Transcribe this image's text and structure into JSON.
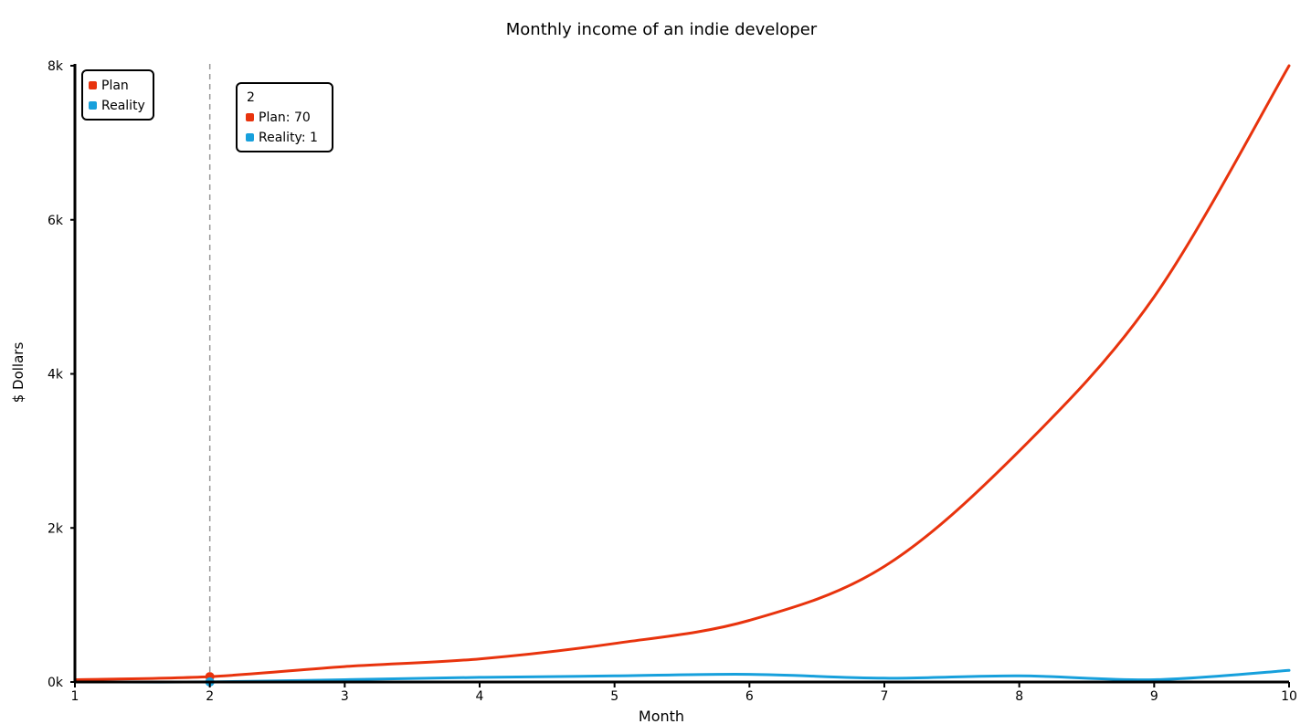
{
  "chart_data": {
    "type": "line",
    "title": "Monthly income of an indie developer",
    "xlabel": "Month",
    "ylabel": "$ Dollars",
    "xlim": [
      1,
      10
    ],
    "ylim": [
      0,
      8000
    ],
    "x_ticks": [
      1,
      2,
      3,
      4,
      5,
      6,
      7,
      8,
      9,
      10
    ],
    "y_ticks": [
      {
        "value": 0,
        "label": "0k"
      },
      {
        "value": 2000,
        "label": "2k"
      },
      {
        "value": 4000,
        "label": "4k"
      },
      {
        "value": 6000,
        "label": "6k"
      },
      {
        "value": 8000,
        "label": "8k"
      }
    ],
    "grid": false,
    "legend": "top-left",
    "series": [
      {
        "name": "Plan",
        "color": "#e8330d",
        "x": [
          1,
          2,
          3,
          4,
          5,
          6,
          7,
          8,
          9,
          10
        ],
        "values": [
          30,
          70,
          200,
          300,
          500,
          800,
          1500,
          3000,
          5000,
          8000
        ]
      },
      {
        "name": "Reality",
        "color": "#17a0dc",
        "x": [
          1,
          2,
          3,
          4,
          5,
          6,
          7,
          8,
          9,
          10
        ],
        "values": [
          0,
          1,
          30,
          60,
          80,
          100,
          50,
          80,
          30,
          150
        ]
      }
    ],
    "hover": {
      "x": 2,
      "title": "2",
      "items": [
        {
          "label": "Plan: 70",
          "color": "#e8330d"
        },
        {
          "label": "Reality: 1",
          "color": "#17a0dc"
        }
      ]
    }
  }
}
